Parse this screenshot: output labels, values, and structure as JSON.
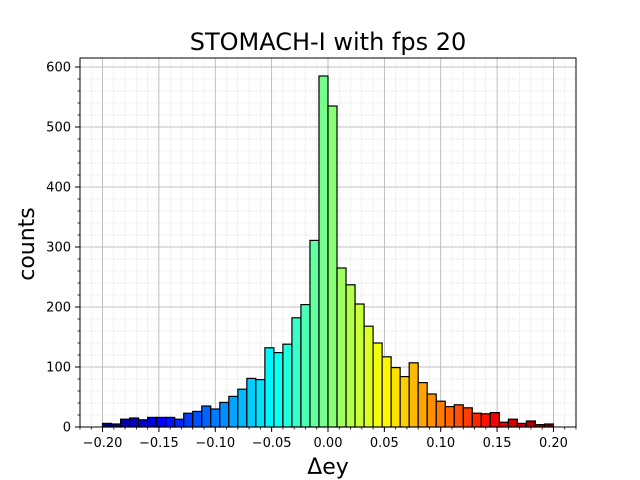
{
  "chart_data": {
    "type": "bar",
    "title": "STOMACH-I with fps 20",
    "xlabel": "Δey",
    "ylabel": "counts",
    "xlim": [
      -0.22,
      0.22
    ],
    "ylim": [
      0,
      615
    ],
    "xticks": [
      -0.2,
      -0.15,
      -0.1,
      -0.05,
      0.0,
      0.05,
      0.1,
      0.15,
      0.2
    ],
    "xtick_labels": [
      "−0.20",
      "−0.15",
      "−0.10",
      "−0.05",
      "0.00",
      "0.05",
      "0.10",
      "0.15",
      "0.20"
    ],
    "yticks": [
      0,
      100,
      200,
      300,
      400,
      500,
      600
    ],
    "ytick_labels": [
      "0",
      "100",
      "200",
      "300",
      "400",
      "500",
      "600"
    ],
    "grid": true,
    "colormap": "jet",
    "bin_start": -0.2,
    "bin_width": 0.008,
    "values": [
      6,
      5,
      13,
      15,
      12,
      16,
      16,
      16,
      13,
      23,
      26,
      35,
      30,
      41,
      51,
      63,
      81,
      79,
      132,
      124,
      138,
      182,
      204,
      311,
      585,
      535,
      265,
      237,
      205,
      168,
      140,
      117,
      99,
      84,
      107,
      74,
      55,
      43,
      34,
      37,
      32,
      23,
      22,
      24,
      8,
      13,
      6,
      10,
      4,
      5
    ]
  }
}
